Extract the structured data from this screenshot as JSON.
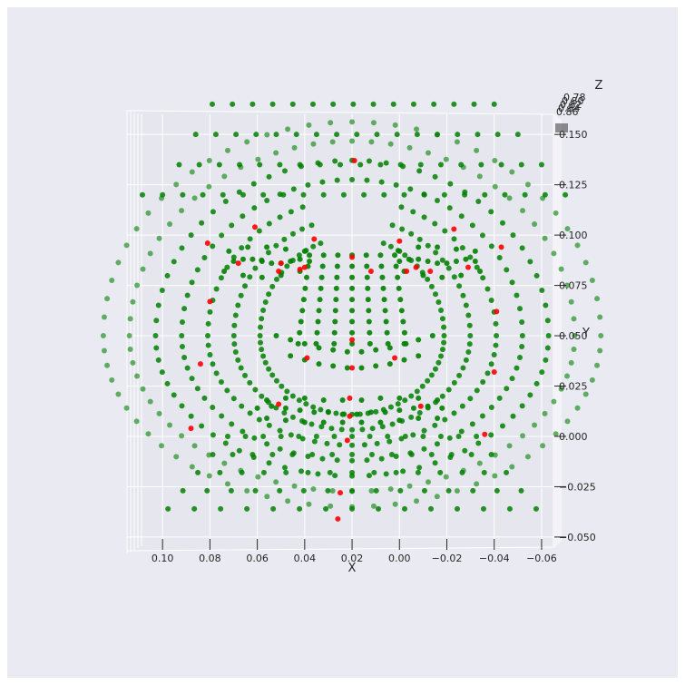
{
  "chart_data": {
    "type": "scatter",
    "projection": "3d",
    "view": "front (looking down Z axis)",
    "background_color": "#eaeaf2",
    "grid": true,
    "xlabel": "X",
    "ylabel": "Y",
    "zlabel": "Z",
    "xlim": [
      0.115,
      -0.065
    ],
    "ylim": [
      -0.055,
      0.16
    ],
    "x_ticks": [
      "0.10",
      "0.08",
      "0.06",
      "0.04",
      "0.02",
      "0.00",
      "−0.02",
      "−0.04",
      "−0.06"
    ],
    "y_ticks": [
      "0.150",
      "0.125",
      "0.100",
      "0.075",
      "0.050",
      "0.025",
      "0.000",
      "−0.025",
      "−0.050"
    ],
    "z_ticks_partial": [
      "0.78",
      "0.80",
      "0.82",
      "0.84",
      "0.86"
    ],
    "series": [
      {
        "color": "#008000",
        "description": "face mesh landmarks (dense grid)",
        "rings": [
          {
            "cx": 0.02,
            "cy": 0.05,
            "rx": 0.105,
            "ry": 0.085,
            "n": 72,
            "ymin": -0.05,
            "ymax": 0.168
          }
        ],
        "face_points": [
          [
            0.07,
            0.087
          ],
          [
            0.066,
            0.088
          ],
          [
            0.062,
            0.088
          ],
          [
            0.058,
            0.087
          ],
          [
            0.054,
            0.086
          ],
          [
            0.05,
            0.086
          ],
          [
            0.046,
            0.087
          ],
          [
            0.042,
            0.088
          ],
          [
            0.038,
            0.087
          ],
          [
            0.0,
            0.087
          ],
          [
            -0.004,
            0.088
          ],
          [
            -0.008,
            0.088
          ],
          [
            -0.012,
            0.087
          ],
          [
            -0.016,
            0.086
          ],
          [
            -0.02,
            0.086
          ],
          [
            -0.024,
            0.087
          ],
          [
            -0.028,
            0.088
          ],
          [
            -0.032,
            0.087
          ],
          [
            0.072,
            0.092
          ],
          [
            0.064,
            0.094
          ],
          [
            0.056,
            0.094
          ],
          [
            0.048,
            0.093
          ],
          [
            0.04,
            0.092
          ],
          [
            0.0,
            0.092
          ],
          [
            -0.008,
            0.094
          ],
          [
            -0.016,
            0.094
          ],
          [
            -0.024,
            0.093
          ],
          [
            -0.032,
            0.092
          ],
          [
            0.074,
            0.082
          ],
          [
            0.066,
            0.08
          ],
          [
            0.058,
            0.079
          ],
          [
            0.05,
            0.08
          ],
          [
            0.042,
            0.082
          ],
          [
            -0.002,
            0.082
          ],
          [
            -0.01,
            0.08
          ],
          [
            -0.018,
            0.079
          ],
          [
            -0.026,
            0.08
          ],
          [
            -0.034,
            0.082
          ],
          [
            0.052,
            0.05
          ],
          [
            0.046,
            0.048
          ],
          [
            0.04,
            0.046
          ],
          [
            0.034,
            0.044
          ],
          [
            0.028,
            0.043
          ],
          [
            0.022,
            0.042
          ],
          [
            0.016,
            0.042
          ],
          [
            0.01,
            0.043
          ],
          [
            0.004,
            0.044
          ],
          [
            -0.002,
            0.046
          ],
          [
            -0.008,
            0.048
          ],
          [
            -0.014,
            0.05
          ],
          [
            0.046,
            0.04
          ],
          [
            0.04,
            0.038
          ],
          [
            0.034,
            0.036
          ],
          [
            0.028,
            0.035
          ],
          [
            0.022,
            0.034
          ],
          [
            0.016,
            0.034
          ],
          [
            0.01,
            0.035
          ],
          [
            0.004,
            0.036
          ],
          [
            -0.002,
            0.038
          ],
          [
            -0.008,
            0.04
          ],
          [
            0.06,
            0.014
          ],
          [
            0.054,
            0.015
          ],
          [
            0.048,
            0.014
          ],
          [
            0.042,
            0.013
          ],
          [
            0.036,
            0.012
          ],
          [
            0.03,
            0.012
          ],
          [
            0.024,
            0.011
          ],
          [
            0.018,
            0.011
          ],
          [
            0.012,
            0.012
          ],
          [
            0.006,
            0.012
          ],
          [
            0.0,
            0.013
          ],
          [
            -0.006,
            0.014
          ],
          [
            -0.012,
            0.015
          ],
          [
            -0.018,
            0.014
          ],
          [
            0.056,
            0.018
          ],
          [
            0.048,
            0.019
          ],
          [
            0.04,
            0.019
          ],
          [
            0.032,
            0.018
          ],
          [
            0.024,
            0.018
          ],
          [
            0.016,
            0.018
          ],
          [
            0.008,
            0.019
          ],
          [
            0.0,
            0.019
          ],
          [
            -0.008,
            0.019
          ],
          [
            -0.016,
            0.018
          ],
          [
            0.056,
            0.009
          ],
          [
            0.048,
            0.008
          ],
          [
            0.04,
            0.007
          ],
          [
            0.032,
            0.007
          ],
          [
            0.024,
            0.007
          ],
          [
            0.016,
            0.007
          ],
          [
            0.008,
            0.007
          ],
          [
            0.0,
            0.008
          ],
          [
            -0.008,
            0.009
          ],
          [
            -0.016,
            0.009
          ]
        ]
      },
      {
        "color": "#ff0000",
        "description": "key landmarks",
        "points": [
          [
            0.019,
            0.137
          ],
          [
            0.061,
            0.104
          ],
          [
            -0.023,
            0.103
          ],
          [
            0.081,
            0.096
          ],
          [
            0.036,
            0.098
          ],
          [
            0.0,
            0.097
          ],
          [
            -0.043,
            0.094
          ],
          [
            0.068,
            0.086
          ],
          [
            0.05,
            0.086
          ],
          [
            0.04,
            0.084
          ],
          [
            0.02,
            0.089
          ],
          [
            0.012,
            0.082
          ],
          [
            -0.007,
            0.084
          ],
          [
            -0.029,
            0.084
          ],
          [
            0.051,
            0.082
          ],
          [
            0.042,
            0.083
          ],
          [
            -0.003,
            0.082
          ],
          [
            -0.013,
            0.082
          ],
          [
            0.08,
            0.067
          ],
          [
            -0.041,
            0.062
          ],
          [
            0.02,
            0.048
          ],
          [
            0.084,
            0.036
          ],
          [
            0.039,
            0.039
          ],
          [
            0.002,
            0.039
          ],
          [
            0.02,
            0.034
          ],
          [
            -0.04,
            0.032
          ],
          [
            0.051,
            0.016
          ],
          [
            -0.009,
            0.015
          ],
          [
            0.021,
            0.019
          ],
          [
            0.021,
            0.01
          ],
          [
            0.088,
            0.004
          ],
          [
            -0.036,
            0.001
          ],
          [
            0.022,
            -0.002
          ],
          [
            0.025,
            -0.028
          ],
          [
            0.026,
            -0.041
          ]
        ]
      }
    ]
  }
}
